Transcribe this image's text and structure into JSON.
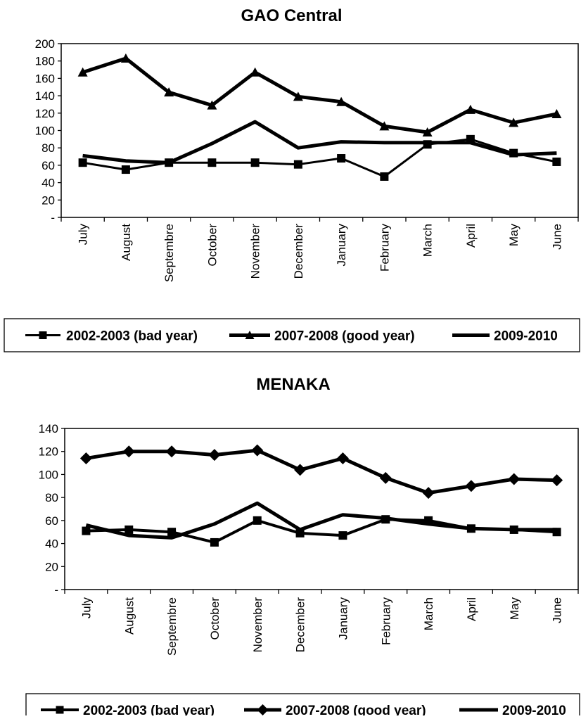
{
  "chart_data": [
    {
      "type": "line",
      "title": "GAO Central",
      "categories": [
        "July",
        "August",
        "Septembre",
        "October",
        "November",
        "December",
        "January",
        "February",
        "March",
        "April",
        "May",
        "June"
      ],
      "yticks": [
        "-",
        "20",
        "40",
        "60",
        "80",
        "100",
        "120",
        "140",
        "160",
        "180",
        "200"
      ],
      "ylim": [
        0,
        200
      ],
      "grid": false,
      "legend_position": "bottom",
      "series": [
        {
          "name": "2002-2003 (bad year)",
          "marker": "square",
          "values": [
            63,
            55,
            63,
            63,
            63,
            61,
            68,
            47,
            84,
            90,
            74,
            64
          ]
        },
        {
          "name": "2007-2008 (good year)",
          "marker": "triangle",
          "values": [
            167,
            183,
            144,
            129,
            167,
            139,
            133,
            105,
            98,
            124,
            109,
            119
          ]
        },
        {
          "name": "2009-2010",
          "marker": "none",
          "values": [
            71,
            65,
            63,
            85,
            110,
            80,
            87,
            86,
            86,
            86,
            72,
            74
          ]
        }
      ]
    },
    {
      "type": "line",
      "title": "MENAKA",
      "categories": [
        "July",
        "August",
        "Septembre",
        "October",
        "November",
        "December",
        "January",
        "February",
        "March",
        "April",
        "May",
        "June"
      ],
      "yticks": [
        "-",
        "20",
        "40",
        "60",
        "80",
        "100",
        "120",
        "140"
      ],
      "ylim": [
        0,
        140
      ],
      "grid": false,
      "legend_position": "bottom",
      "series": [
        {
          "name": "2002-2003 (bad year)",
          "marker": "square",
          "values": [
            51,
            52,
            50,
            41,
            60,
            49,
            47,
            61,
            60,
            53,
            52,
            50
          ]
        },
        {
          "name": "2007-2008 (good year)",
          "marker": "diamond",
          "values": [
            114,
            120,
            120,
            117,
            121,
            104,
            114,
            97,
            84,
            90,
            96,
            95
          ]
        },
        {
          "name": "2009-2010",
          "marker": "none",
          "values": [
            56,
            47,
            45,
            57,
            75,
            52,
            65,
            62,
            57,
            53,
            52,
            52
          ]
        }
      ]
    }
  ]
}
